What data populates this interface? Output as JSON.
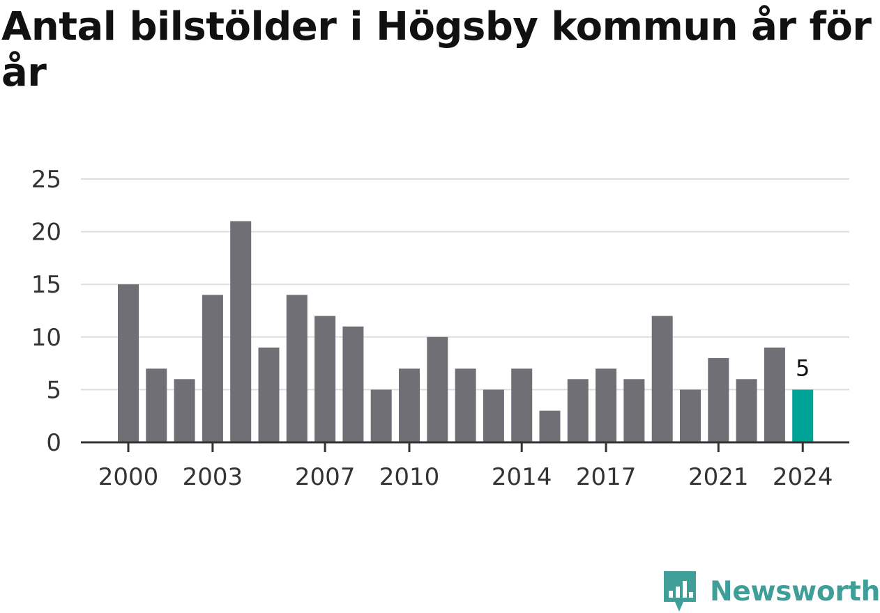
{
  "title": "Antal bilstölder i Högsby kommun år för år",
  "brand": {
    "name": "Newsworthy",
    "icon": "newsworthy-chart-bubble-icon",
    "color": "#3f9e98"
  },
  "chart_data": {
    "type": "bar",
    "title": "Antal bilstölder i Högsby kommun år för år",
    "xlabel": "",
    "ylabel": "",
    "categories": [
      "2000",
      "2001",
      "2002",
      "2003",
      "2004",
      "2005",
      "2006",
      "2007",
      "2008",
      "2009",
      "2010",
      "2011",
      "2012",
      "2013",
      "2014",
      "2015",
      "2016",
      "2017",
      "2018",
      "2019",
      "2020",
      "2021",
      "2022",
      "2023",
      "2024"
    ],
    "values": [
      15,
      7,
      6,
      14,
      21,
      9,
      14,
      12,
      11,
      5,
      7,
      10,
      7,
      5,
      7,
      3,
      6,
      7,
      6,
      12,
      5,
      8,
      6,
      9,
      5
    ],
    "ylim": [
      0,
      25
    ],
    "yticks": [
      0,
      5,
      10,
      15,
      20,
      25
    ],
    "xtick_labels": [
      "2000",
      "2003",
      "2007",
      "2010",
      "2014",
      "2017",
      "2021",
      "2024"
    ],
    "grid": true,
    "colors": {
      "bar": "#706f75",
      "highlight": "#00a497",
      "grid": "#dddddd",
      "axis": "#333333"
    },
    "highlight": {
      "category": "2024",
      "label": "5"
    }
  }
}
